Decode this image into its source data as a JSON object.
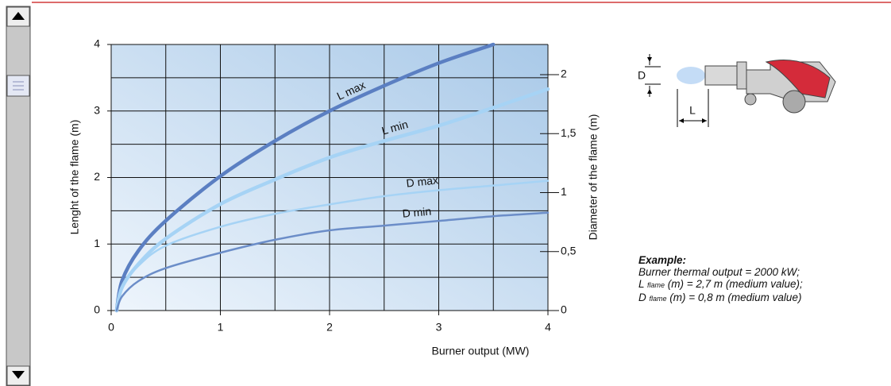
{
  "chart_data": {
    "type": "line",
    "x": [
      0.05,
      0.1,
      0.25,
      0.5,
      1,
      1.5,
      2,
      2.5,
      3,
      3.5,
      4
    ],
    "series": [
      {
        "name": "L max",
        "color": "#5b7fc2",
        "values": [
          0,
          0.45,
          0.9,
          1.35,
          2.02,
          2.55,
          3.0,
          3.38,
          3.72,
          4.0,
          null
        ]
      },
      {
        "name": "L min",
        "color": "#a6d3f5",
        "values": [
          0,
          0.35,
          0.7,
          1.08,
          1.6,
          1.97,
          2.3,
          2.55,
          2.78,
          3.05,
          3.33
        ]
      },
      {
        "name": "D max",
        "color": "#a6d3f5",
        "axis": "y2",
        "values": [
          0,
          0.2,
          0.38,
          0.55,
          0.71,
          0.82,
          0.9,
          0.97,
          1.02,
          1.06,
          1.1
        ]
      },
      {
        "name": "D min",
        "color": "#6b8dc8",
        "axis": "y2",
        "values": [
          0,
          0.12,
          0.25,
          0.36,
          0.49,
          0.6,
          0.68,
          0.72,
          0.76,
          0.8,
          0.83
        ]
      }
    ],
    "xlim": [
      0,
      4
    ],
    "xticks": [
      0,
      1,
      2,
      3,
      4
    ],
    "ylim": [
      0,
      4
    ],
    "yticks": [
      0,
      1,
      2,
      3,
      4
    ],
    "y2lim": [
      0,
      2.256
    ],
    "y2ticks": [
      0,
      {
        "value": 0.5,
        "label": "0,5"
      },
      1,
      {
        "value": 1.5,
        "label": "1,5"
      },
      2
    ],
    "xlabel": "Burner output (MW)",
    "ylabel": "Lenght of the flame (m)",
    "y2label": "Diameter of the flame (m)",
    "grid": true
  },
  "diagram": {
    "d_label": "D",
    "l_label": "L"
  },
  "example": {
    "title": "Example:",
    "line1": "Burner thermal output  = 2000 kW;",
    "line2": {
      "main": "L",
      "sub": "flame",
      "rest": " (m) = 2,7 m (medium value);"
    },
    "line3": {
      "main": "D",
      "sub": "flame",
      "rest": " (m) = 0,8 m (medium value)"
    }
  }
}
